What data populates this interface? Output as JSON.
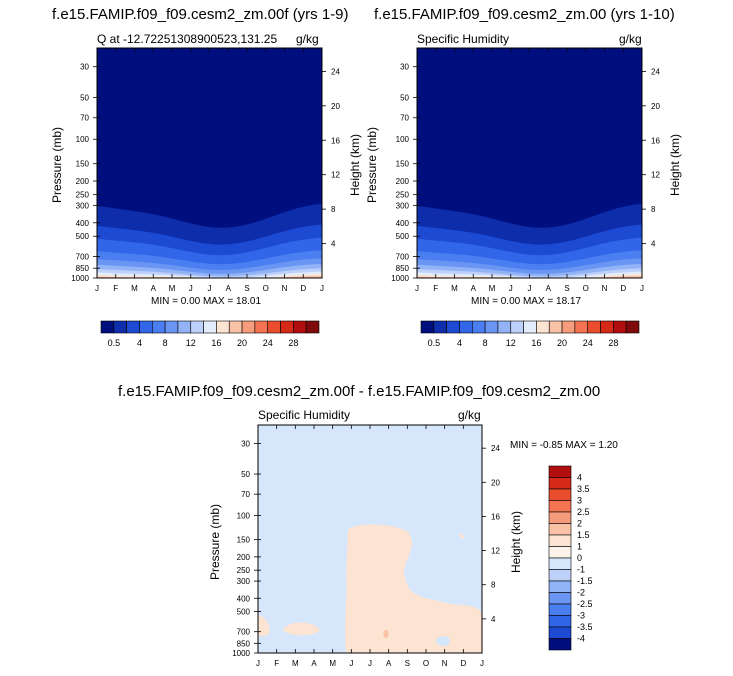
{
  "chart_data": [
    {
      "type": "contour",
      "title": "f.e15.FAMIP.f09_f09.cesm2_zm.00f (yrs 1-9)",
      "subtitle_left": "Q at -12.72251308900523,131.25",
      "subtitle_right": "g/kg",
      "xlabel": "",
      "ylabel": "Pressure (mb)",
      "ylabel_right": "Height (km)",
      "x_ticks": [
        "J",
        "F",
        "M",
        "A",
        "M",
        "J",
        "J",
        "A",
        "S",
        "O",
        "N",
        "D",
        "J"
      ],
      "y_ticks": [
        30,
        50,
        70,
        100,
        150,
        200,
        250,
        300,
        400,
        500,
        700,
        850,
        1000
      ],
      "y_right_ticks": [
        24,
        20,
        16,
        12,
        8,
        4
      ],
      "ylim": [
        1000,
        20
      ],
      "min": "0.00",
      "max": "18.01",
      "minmax_text": "MIN =   0.00 MAX =  18.01",
      "colorbar_labels": [
        "0.5",
        "4",
        "8",
        "12",
        "16",
        "20",
        "24",
        "28"
      ],
      "colorbar_colors": [
        "#000e7e",
        "#0d2dab",
        "#1c4ad3",
        "#3266e8",
        "#4b7ef0",
        "#6b95f3",
        "#93b3f7",
        "#bcd0fa",
        "#e2ecfc",
        "#fde3d2",
        "#f9c1a5",
        "#f69b7c",
        "#f37352",
        "#ea4d2e",
        "#d62918",
        "#b10d0c",
        "#7e0a0b"
      ]
    },
    {
      "type": "contour",
      "title": "f.e15.FAMIP.f09_f09.cesm2_zm.00 (yrs 1-10)",
      "subtitle_left": "Specific Humidity",
      "subtitle_right": "g/kg",
      "ylabel": "Pressure (mb)",
      "ylabel_right": "Height (km)",
      "x_ticks": [
        "J",
        "F",
        "M",
        "A",
        "M",
        "J",
        "J",
        "A",
        "S",
        "O",
        "N",
        "D",
        "J"
      ],
      "y_ticks": [
        30,
        50,
        70,
        100,
        150,
        200,
        250,
        300,
        400,
        500,
        700,
        850,
        1000
      ],
      "y_right_ticks": [
        24,
        20,
        16,
        12,
        8,
        4
      ],
      "ylim": [
        1000,
        20
      ],
      "min": "0.00",
      "max": "18.17",
      "minmax_text": "MIN =   0.00 MAX =  18.17",
      "colorbar_labels": [
        "0.5",
        "4",
        "8",
        "12",
        "16",
        "20",
        "24",
        "28"
      ],
      "colorbar_colors": [
        "#000e7e",
        "#0d2dab",
        "#1c4ad3",
        "#3266e8",
        "#4b7ef0",
        "#6b95f3",
        "#93b3f7",
        "#bcd0fa",
        "#e2ecfc",
        "#fde3d2",
        "#f9c1a5",
        "#f69b7c",
        "#f37352",
        "#ea4d2e",
        "#d62918",
        "#b10d0c",
        "#7e0a0b"
      ]
    },
    {
      "type": "contour",
      "title": "f.e15.FAMIP.f09_f09.cesm2_zm.00f - f.e15.FAMIP.f09_f09.cesm2_zm.00",
      "subtitle_left": "Specific Humidity",
      "subtitle_right": "g/kg",
      "ylabel": "Pressure (mb)",
      "ylabel_right": "Height (km)",
      "x_ticks": [
        "J",
        "F",
        "M",
        "A",
        "M",
        "J",
        "J",
        "A",
        "S",
        "O",
        "N",
        "D",
        "J"
      ],
      "y_ticks": [
        30,
        50,
        70,
        100,
        150,
        200,
        250,
        300,
        400,
        500,
        700,
        850,
        1000
      ],
      "y_right_ticks": [
        24,
        20,
        16,
        12,
        8,
        4
      ],
      "ylim": [
        1000,
        20
      ],
      "min": "-0.85",
      "max": "1.20",
      "minmax_text": "MIN =  -0.85 MAX =   1.20",
      "colorbar_labels": [
        "4",
        "3.5",
        "3",
        "2.5",
        "2",
        "1.5",
        "1",
        "0",
        "-1",
        "-1.5",
        "-2",
        "-2.5",
        "-3",
        "-3.5",
        "-4"
      ],
      "colorbar_colors": [
        "#b10d0c",
        "#d62918",
        "#ea4d2e",
        "#f37352",
        "#f69b7c",
        "#f9c1a5",
        "#fde3d2",
        "#fef3ea",
        "#d6e6fb",
        "#bcd0fa",
        "#93b3f7",
        "#6b95f3",
        "#4b7ef0",
        "#3266e8",
        "#1c4ad3",
        "#000e7e"
      ]
    }
  ]
}
